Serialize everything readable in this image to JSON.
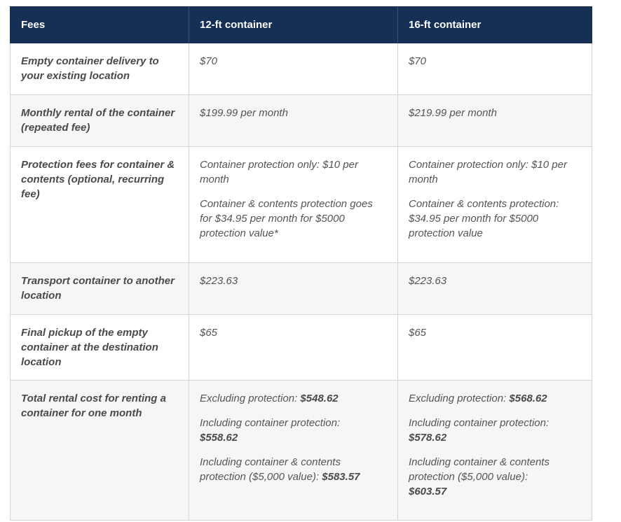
{
  "table": {
    "headers": [
      "Fees",
      "12-ft container",
      "16-ft container"
    ],
    "rows": [
      {
        "label": "Empty container delivery to your existing location",
        "col12": "$70",
        "col16": "$70"
      },
      {
        "label": "Monthly rental of the container (repeated fee)",
        "col12": "$199.99 per month",
        "col16": "$219.99 per month"
      },
      {
        "label": "Protection fees for container & contents (optional, recurring fee)",
        "col12_p1": "Container protection only: $10 per month",
        "col12_p2": "Container & contents protection goes for $34.95 per month for $5000 protection value*",
        "col16_p1": "Container protection only: $10 per month",
        "col16_p2": "Container & contents protection: $34.95 per month for $5000 protection value"
      },
      {
        "label": "Transport container to another location",
        "col12": "$223.63",
        "col16": "$223.63"
      },
      {
        "label": "Final pickup of the empty container at the destination location",
        "col12": "$65",
        "col16": "$65"
      },
      {
        "label": "Total rental cost for renting a container for one month",
        "col12": {
          "excl_label": "Excluding protection: ",
          "excl_value": "$548.62",
          "incl_container_label": "Including container protection:",
          "incl_container_value": "$558.62",
          "incl_contents_label": "Including container & contents protection ($5,000 value): ",
          "incl_contents_value": "$583.57"
        },
        "col16": {
          "excl_label": "Excluding protection: ",
          "excl_value": "$568.62",
          "incl_container_label": "Including container protection:",
          "incl_container_value": "$578.62",
          "incl_contents_label": "Including container & contents protection ($5,000 value):",
          "incl_contents_value": "$603.57"
        }
      }
    ]
  }
}
